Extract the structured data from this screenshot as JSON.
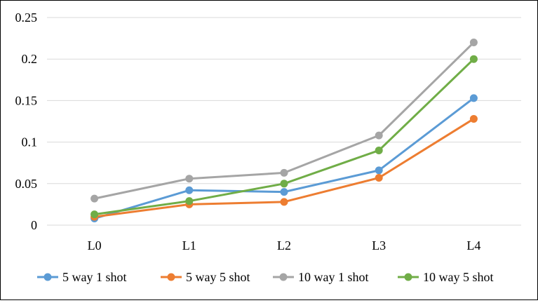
{
  "chart_data": {
    "type": "line",
    "title": "",
    "xlabel": "",
    "ylabel": "",
    "categories": [
      "L0",
      "L1",
      "L2",
      "L3",
      "L4"
    ],
    "ylim": [
      0,
      0.25
    ],
    "yticks": [
      0,
      0.05,
      0.1,
      0.15,
      0.2,
      0.25
    ],
    "ytick_labels": [
      "0",
      "0.05",
      "0.1",
      "0.15",
      "0.2",
      "0.25"
    ],
    "grid": true,
    "legend_position": "bottom",
    "series": [
      {
        "name": "5 way 1 shot",
        "color": "#5B9BD5",
        "values": [
          0.008,
          0.042,
          0.04,
          0.066,
          0.153
        ]
      },
      {
        "name": "5 way 5 shot",
        "color": "#ED7D31",
        "values": [
          0.01,
          0.025,
          0.028,
          0.057,
          0.128
        ]
      },
      {
        "name": "10 way 1 shot",
        "color": "#A5A5A5",
        "values": [
          0.032,
          0.056,
          0.063,
          0.108,
          0.22
        ]
      },
      {
        "name": "10 way 5 shot",
        "color": "#70AD47",
        "values": [
          0.013,
          0.029,
          0.05,
          0.09,
          0.2
        ]
      }
    ]
  }
}
